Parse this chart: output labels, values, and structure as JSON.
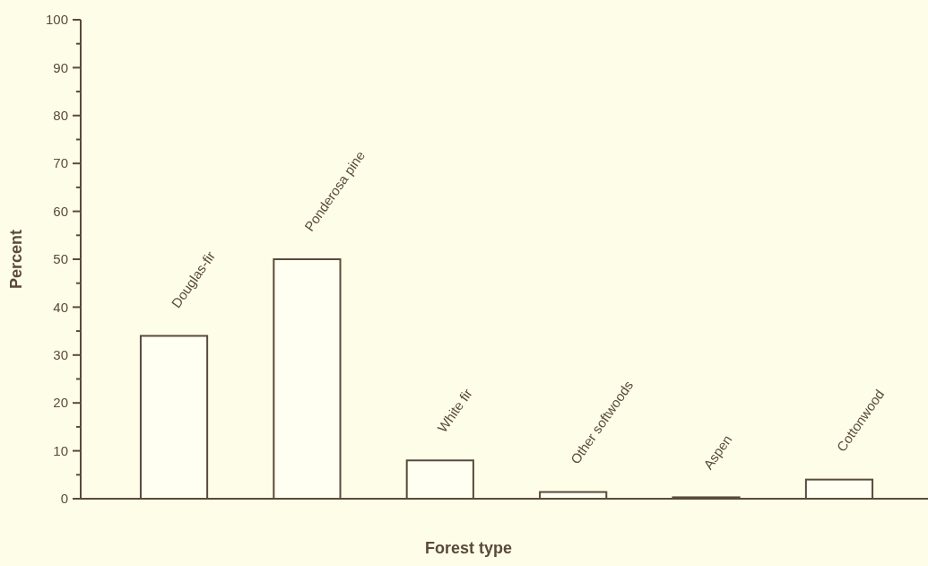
{
  "chart_data": {
    "type": "bar",
    "xlabel": "Forest type",
    "ylabel": "Percent",
    "categories": [
      "Douglas-fir",
      "Ponderosa pine",
      "White fir",
      "Other softwoods",
      "Aspen",
      "Cottonwood"
    ],
    "values": [
      34,
      50,
      8,
      1.4,
      0.3,
      4
    ],
    "color": "#fffff2",
    "ylim": [
      0,
      100
    ],
    "yticks": [
      0,
      {
        "value": 5,
        "label": null
      },
      10,
      {
        "value": 15,
        "label": null
      },
      20,
      {
        "value": 25,
        "label": null
      },
      30,
      {
        "value": 35,
        "label": null
      },
      40,
      {
        "value": 45,
        "label": null
      },
      50,
      {
        "value": 55,
        "label": null
      },
      60,
      {
        "value": 65,
        "label": null
      },
      70,
      {
        "value": 75,
        "label": null
      },
      80,
      {
        "value": 85,
        "label": null
      },
      90,
      {
        "value": 95,
        "label": null
      },
      100
    ],
    "grid": false
  }
}
